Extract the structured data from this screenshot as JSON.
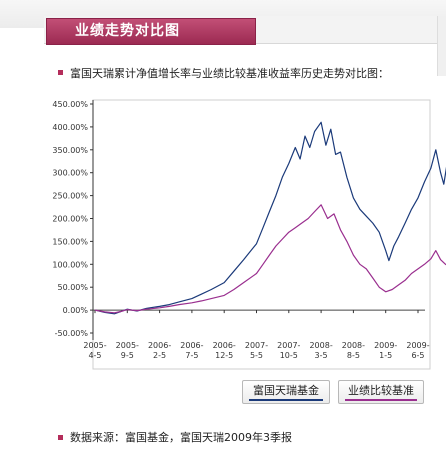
{
  "header": {
    "title": "业绩走势对比图"
  },
  "intro": "富国天瑞累计净值增长率与业绩比较基准收益率历史走势对比图：",
  "source": "数据来源：富国基金，富国天瑞2009年3季报",
  "colors": {
    "fund": "#1b3a7a",
    "benchmark": "#9a2f8f",
    "accent": "#b42d5b"
  },
  "legend": [
    {
      "name": "富国天瑞基金",
      "color": "#1b3a7a"
    },
    {
      "name": "业绩比较基准",
      "color": "#9a2f8f"
    }
  ],
  "chart_data": {
    "type": "line",
    "title": "",
    "xlabel": "",
    "ylabel": "",
    "ylim": [
      -50,
      450
    ],
    "y_ticks": [
      "450.00%",
      "400.00%",
      "350.00%",
      "300.00%",
      "250.00%",
      "200.00%",
      "150.00%",
      "100.00%",
      "50.00%",
      "0.00%",
      "-50.00%"
    ],
    "x_ticks": [
      [
        "2005-",
        "4-5"
      ],
      [
        "2005-",
        "9-5"
      ],
      [
        "2006-",
        "2-5"
      ],
      [
        "2006-",
        "7-5"
      ],
      [
        "2006-",
        "12-5"
      ],
      [
        "2007-",
        "5-5"
      ],
      [
        "2007-",
        "10-5"
      ],
      [
        "2008-",
        "3-5"
      ],
      [
        "2008-",
        "8-5"
      ],
      [
        "2009-",
        "1-5"
      ],
      [
        "2009-",
        "6-5"
      ]
    ],
    "grid": false,
    "legend_position": "bottom-right",
    "series": [
      {
        "name": "富国天瑞基金",
        "color": "#1b3a7a",
        "values": [
          [
            0,
            0
          ],
          [
            0.3,
            -5
          ],
          [
            0.6,
            -8
          ],
          [
            0.8,
            -3
          ],
          [
            1,
            2
          ],
          [
            1.3,
            -2
          ],
          [
            1.6,
            4
          ],
          [
            2,
            8
          ],
          [
            2.3,
            12
          ],
          [
            2.6,
            18
          ],
          [
            3,
            25
          ],
          [
            3.3,
            35
          ],
          [
            3.6,
            45
          ],
          [
            4,
            60
          ],
          [
            4.3,
            85
          ],
          [
            4.6,
            110
          ],
          [
            5,
            145
          ],
          [
            5.2,
            180
          ],
          [
            5.4,
            215
          ],
          [
            5.6,
            250
          ],
          [
            5.8,
            290
          ],
          [
            6,
            320
          ],
          [
            6.2,
            355
          ],
          [
            6.35,
            330
          ],
          [
            6.5,
            380
          ],
          [
            6.65,
            355
          ],
          [
            6.8,
            390
          ],
          [
            7,
            410
          ],
          [
            7.15,
            360
          ],
          [
            7.3,
            395
          ],
          [
            7.45,
            340
          ],
          [
            7.6,
            345
          ],
          [
            7.8,
            290
          ],
          [
            8,
            245
          ],
          [
            8.2,
            220
          ],
          [
            8.4,
            205
          ],
          [
            8.6,
            190
          ],
          [
            8.8,
            170
          ],
          [
            9,
            130
          ],
          [
            9.1,
            108
          ],
          [
            9.25,
            140
          ],
          [
            9.4,
            160
          ],
          [
            9.6,
            190
          ],
          [
            9.8,
            220
          ],
          [
            10,
            245
          ],
          [
            10.2,
            280
          ],
          [
            10.4,
            310
          ],
          [
            10.55,
            350
          ],
          [
            10.7,
            300
          ],
          [
            10.8,
            275
          ],
          [
            10.9,
            320
          ],
          [
            11,
            300
          ]
        ]
      },
      {
        "name": "业绩比较基准",
        "color": "#9a2f8f",
        "values": [
          [
            0,
            0
          ],
          [
            0.3,
            -4
          ],
          [
            0.6,
            -6
          ],
          [
            0.8,
            -3
          ],
          [
            1,
            1
          ],
          [
            1.3,
            -1
          ],
          [
            1.6,
            2
          ],
          [
            2,
            5
          ],
          [
            2.3,
            8
          ],
          [
            2.6,
            12
          ],
          [
            3,
            16
          ],
          [
            3.3,
            20
          ],
          [
            3.6,
            25
          ],
          [
            4,
            32
          ],
          [
            4.3,
            45
          ],
          [
            4.6,
            60
          ],
          [
            5,
            80
          ],
          [
            5.2,
            100
          ],
          [
            5.4,
            120
          ],
          [
            5.6,
            140
          ],
          [
            5.8,
            155
          ],
          [
            6,
            170
          ],
          [
            6.2,
            180
          ],
          [
            6.4,
            190
          ],
          [
            6.6,
            200
          ],
          [
            6.8,
            215
          ],
          [
            7,
            230
          ],
          [
            7.2,
            200
          ],
          [
            7.4,
            210
          ],
          [
            7.6,
            175
          ],
          [
            7.8,
            150
          ],
          [
            8,
            120
          ],
          [
            8.2,
            100
          ],
          [
            8.4,
            90
          ],
          [
            8.6,
            70
          ],
          [
            8.8,
            50
          ],
          [
            9,
            40
          ],
          [
            9.2,
            45
          ],
          [
            9.4,
            55
          ],
          [
            9.6,
            65
          ],
          [
            9.8,
            80
          ],
          [
            10,
            90
          ],
          [
            10.2,
            100
          ],
          [
            10.4,
            112
          ],
          [
            10.55,
            130
          ],
          [
            10.7,
            110
          ],
          [
            10.85,
            100
          ],
          [
            11,
            95
          ]
        ]
      }
    ]
  }
}
